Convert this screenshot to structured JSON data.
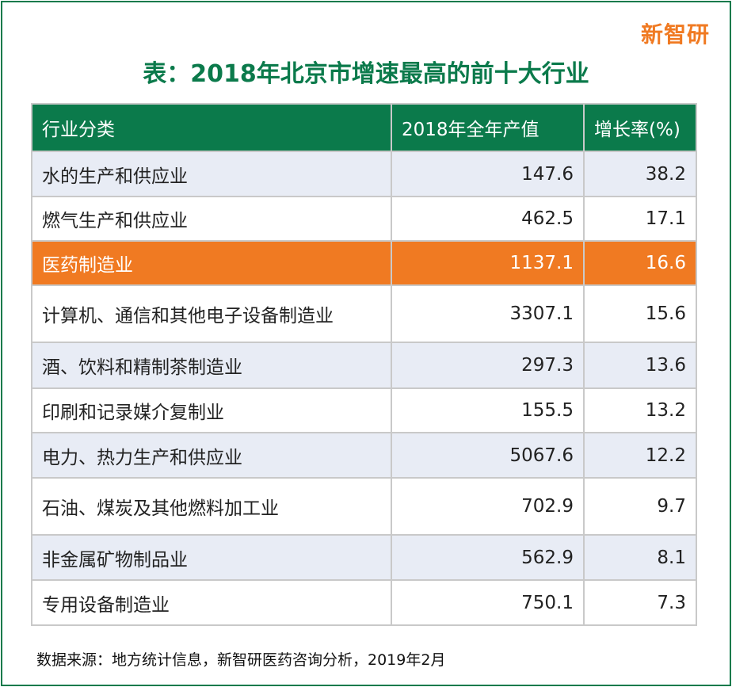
{
  "logo": "新智研",
  "chart_data": {
    "type": "table",
    "title": "表：2018年北京市增速最高的前十大行业",
    "columns": [
      "行业分类",
      "2018年全年产值",
      "增长率(%)"
    ],
    "rows": [
      {
        "name": "水的生产和供应业",
        "output": "147.6",
        "growth": "38.2"
      },
      {
        "name": "燃气生产和供应业",
        "output": "462.5",
        "growth": "17.1"
      },
      {
        "name": "医药制造业",
        "output": "1137.1",
        "growth": "16.6",
        "highlight": true
      },
      {
        "name": "计算机、通信和其他电子设备制造业",
        "output": "3307.1",
        "growth": "15.6"
      },
      {
        "name": "酒、饮料和精制茶制造业",
        "output": "297.3",
        "growth": "13.6"
      },
      {
        "name": "印刷和记录媒介复制业",
        "output": "155.5",
        "growth": "13.2"
      },
      {
        "name": "电力、热力生产和供应业",
        "output": "5067.6",
        "growth": "12.2"
      },
      {
        "name": "石油、煤炭及其他燃料加工业",
        "output": "702.9",
        "growth": "9.7"
      },
      {
        "name": "非金属矿物制品业",
        "output": "562.9",
        "growth": "8.1"
      },
      {
        "name": "专用设备制造业",
        "output": "750.1",
        "growth": "7.3"
      }
    ],
    "source": "数据来源：地方统计信息，新智研医药咨询分析，2019年2月"
  },
  "colors": {
    "header_bg": "#0b7a4b",
    "highlight_bg": "#f07a22",
    "stripe_bg": "#e8ecf5",
    "logo": "#f07a22"
  }
}
